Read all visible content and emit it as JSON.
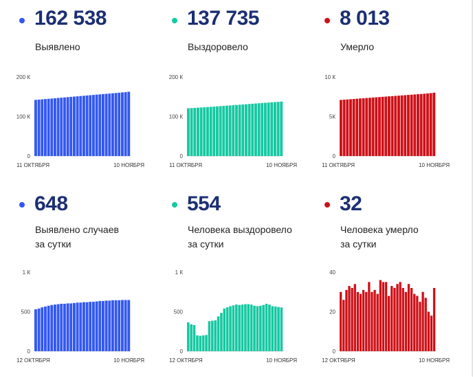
{
  "colors": {
    "blue": "#3358f0",
    "green": "#16c8a2",
    "red": "#cf1017",
    "text_dark": "#1c2f73"
  },
  "panels": [
    {
      "id": "detected-total",
      "value": "162 538",
      "label_lines": [
        "Выявлено"
      ],
      "dot_color": "#3358f0",
      "chart_data": {
        "type": "bar",
        "color": "#3358f0",
        "y_ticks": [
          "200 К",
          "100 К",
          "0"
        ],
        "ylim": [
          0,
          200000
        ],
        "x_labels": [
          "11 ОКТЯБРЯ",
          "10 НОЯБРЯ"
        ],
        "values": [
          142000,
          142700,
          143400,
          144100,
          144800,
          145500,
          146200,
          146900,
          147600,
          148300,
          149000,
          149700,
          150400,
          151100,
          151800,
          152500,
          153200,
          153900,
          154600,
          155300,
          156000,
          156700,
          157400,
          158100,
          158800,
          159500,
          160200,
          160900,
          161600,
          162538
        ]
      }
    },
    {
      "id": "recovered-total",
      "value": "137 735",
      "label_lines": [
        "Выздоровело"
      ],
      "dot_color": "#16c8a2",
      "chart_data": {
        "type": "bar",
        "color": "#16c8a2",
        "y_ticks": [
          "200 К",
          "100 К",
          "0"
        ],
        "ylim": [
          0,
          200000
        ],
        "x_labels": [
          "11 ОКТЯБРЯ",
          "10 НОЯБРЯ"
        ],
        "values": [
          120800,
          121300,
          121800,
          122300,
          122800,
          123400,
          123900,
          124500,
          125000,
          125600,
          126200,
          126800,
          127400,
          128000,
          128600,
          129200,
          129800,
          130400,
          131000,
          131700,
          132300,
          132900,
          133500,
          134100,
          134700,
          135300,
          135900,
          136500,
          137100,
          137735
        ]
      }
    },
    {
      "id": "died-total",
      "value": "8 013",
      "label_lines": [
        "Умерло"
      ],
      "dot_color": "#cf1017",
      "chart_data": {
        "type": "bar",
        "color": "#cf1017",
        "y_ticks": [
          "10 К",
          "5К",
          "0"
        ],
        "ylim": [
          0,
          10000
        ],
        "x_labels": [
          "11 ОКТЯБРЯ",
          "10 НОЯБРЯ"
        ],
        "values": [
          7100,
          7130,
          7160,
          7190,
          7220,
          7250,
          7280,
          7310,
          7340,
          7370,
          7400,
          7430,
          7460,
          7490,
          7520,
          7550,
          7580,
          7610,
          7640,
          7670,
          7700,
          7730,
          7760,
          7790,
          7820,
          7850,
          7880,
          7920,
          7960,
          8013
        ]
      }
    },
    {
      "id": "detected-daily",
      "value": "648",
      "label_lines": [
        "Выявлено случаев",
        "за сутки"
      ],
      "dot_color": "#3358f0",
      "chart_data": {
        "type": "bar",
        "color": "#3358f0",
        "y_ticks": [
          "1 К",
          "500",
          "0"
        ],
        "ylim": [
          0,
          1000
        ],
        "x_labels": [
          "12 ОКТЯБРЯ",
          "10 НОЯБРЯ"
        ],
        "values": [
          530,
          540,
          555,
          565,
          575,
          585,
          590,
          595,
          600,
          600,
          605,
          605,
          610,
          615,
          615,
          620,
          620,
          625,
          625,
          630,
          635,
          635,
          640,
          640,
          645,
          645,
          645,
          648,
          648,
          648
        ]
      }
    },
    {
      "id": "recovered-daily",
      "value": "554",
      "label_lines": [
        "Человека выздоровело",
        "за сутки"
      ],
      "dot_color": "#16c8a2",
      "chart_data": {
        "type": "bar",
        "color": "#16c8a2",
        "y_ticks": [
          "1 К",
          "500",
          "0"
        ],
        "ylim": [
          0,
          1000
        ],
        "x_labels": [
          "12 ОКТЯБРЯ",
          "10 НОЯБРЯ"
        ],
        "values": [
          365,
          340,
          330,
          200,
          195,
          200,
          205,
          380,
          385,
          390,
          440,
          485,
          540,
          555,
          570,
          580,
          590,
          585,
          590,
          595,
          595,
          590,
          575,
          570,
          575,
          585,
          600,
          590,
          570,
          565,
          560,
          554
        ]
      }
    },
    {
      "id": "died-daily",
      "value": "32",
      "label_lines": [
        "Человека умерло",
        "за сутки"
      ],
      "dot_color": "#cf1017",
      "chart_data": {
        "type": "bar",
        "color": "#cf1017",
        "y_ticks": [
          "40",
          "20",
          "0"
        ],
        "ylim": [
          0,
          40
        ],
        "x_labels": [
          "12 ОКТЯБРЯ",
          "10 НОЯБРЯ"
        ],
        "values": [
          30,
          26,
          31,
          33,
          32,
          34,
          30,
          29,
          31,
          30,
          35,
          30,
          31,
          29,
          36,
          35,
          35,
          28,
          33,
          32,
          34,
          35,
          32,
          30,
          34,
          32,
          29,
          28,
          25,
          30,
          27,
          20,
          18,
          32
        ]
      }
    }
  ]
}
